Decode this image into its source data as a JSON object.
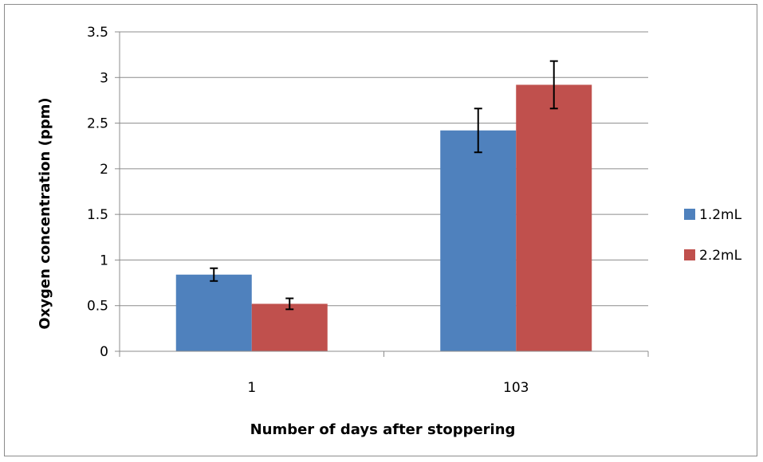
{
  "chart_data": {
    "type": "bar",
    "categories": [
      "1",
      "103"
    ],
    "series": [
      {
        "name": "1.2mL",
        "color": "#4f81bd",
        "values": [
          0.84,
          2.42
        ],
        "error": [
          0.07,
          0.24
        ]
      },
      {
        "name": "2.2mL",
        "color": "#c0504d",
        "values": [
          0.52,
          2.92
        ],
        "error": [
          0.06,
          0.26
        ]
      }
    ],
    "xlabel": "Number of days after stoppering",
    "ylabel": "Oxygen concentration (ppm)",
    "ylim": [
      0,
      3.5
    ],
    "yticks": [
      "0",
      "0.5",
      "1",
      "1.5",
      "2",
      "2.5",
      "3",
      "3.5"
    ],
    "ytick_values": [
      0,
      0.5,
      1,
      1.5,
      2,
      2.5,
      3,
      3.5
    ],
    "grid": true,
    "legend_position": "right"
  }
}
